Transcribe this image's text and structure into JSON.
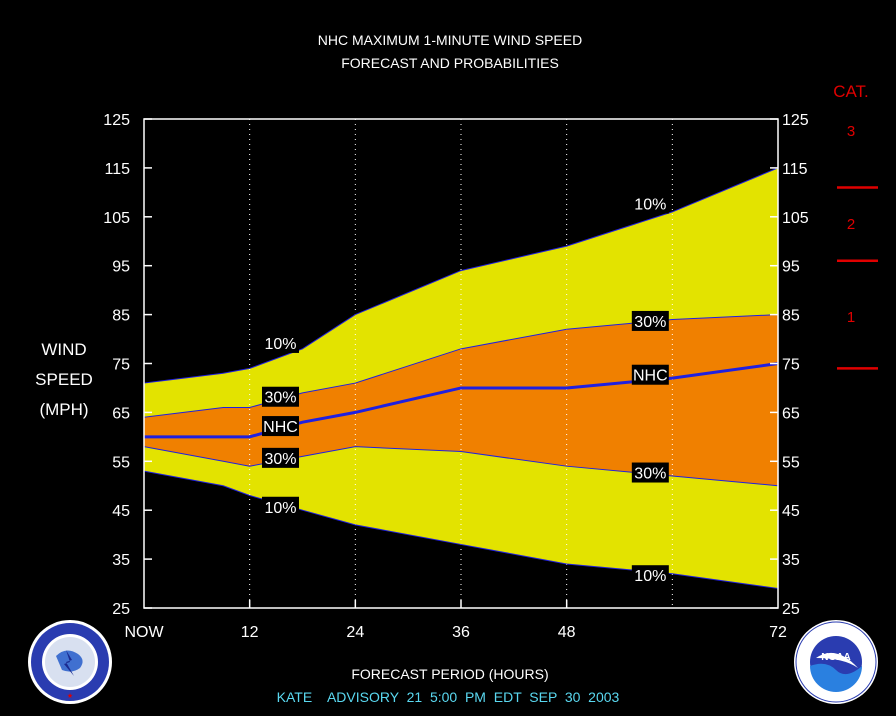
{
  "chart_data": {
    "type": "area",
    "title_line1": "NHC MAXIMUM 1-MINUTE WIND SPEED",
    "title_line2": "FORECAST AND PROBABILITIES",
    "ylabel_lines": [
      "WIND",
      "SPEED",
      "(MPH)"
    ],
    "xlabel": "FORECAST PERIOD (HOURS)",
    "footer": "KATE    ADVISORY  21  5:00  PM  EDT  SEP  30  2003",
    "xlim": [
      0,
      72
    ],
    "ylim": [
      25,
      125
    ],
    "x_ticks": [
      {
        "value": 0,
        "label": "NOW"
      },
      {
        "value": 12,
        "label": "12"
      },
      {
        "value": 24,
        "label": "24"
      },
      {
        "value": 36,
        "label": "36"
      },
      {
        "value": 48,
        "label": "48"
      },
      {
        "value": 72,
        "label": "72"
      }
    ],
    "y_ticks": [
      25,
      35,
      45,
      55,
      65,
      75,
      85,
      95,
      105,
      115,
      125
    ],
    "grid_x": [
      12,
      24,
      36,
      48,
      60
    ],
    "x": [
      0,
      9,
      12,
      18,
      24,
      36,
      48,
      60,
      72
    ],
    "series": [
      {
        "label": "10%",
        "role": "upper",
        "values": [
          71,
          73,
          74,
          78,
          85,
          94,
          99,
          106,
          115
        ]
      },
      {
        "label": "30%",
        "role": "upper",
        "values": [
          64,
          66,
          66,
          69,
          71,
          78,
          82,
          84,
          85
        ]
      },
      {
        "label": "NHC",
        "role": "forecast",
        "values": [
          60,
          60,
          60,
          63,
          65,
          70,
          70,
          72,
          75
        ]
      },
      {
        "label": "30%",
        "role": "lower",
        "values": [
          58,
          55,
          54,
          56,
          58,
          57,
          54,
          52,
          50
        ]
      },
      {
        "label": "10%",
        "role": "lower",
        "values": [
          53,
          50,
          48,
          45,
          42,
          38,
          34,
          32,
          29
        ]
      }
    ],
    "series_labels": [
      {
        "text": "10%",
        "x": 15.5,
        "y": 79
      },
      {
        "text": "30%",
        "x": 15.5,
        "y": 68
      },
      {
        "text": "NHC",
        "x": 15.5,
        "y": 62
      },
      {
        "text": "30%",
        "x": 15.5,
        "y": 55.5
      },
      {
        "text": "10%",
        "x": 15.5,
        "y": 45.5
      },
      {
        "text": "10%",
        "x": 57.5,
        "y": 107.5
      },
      {
        "text": "30%",
        "x": 57.5,
        "y": 83.5
      },
      {
        "text": "NHC",
        "x": 57.5,
        "y": 72.5
      },
      {
        "text": "30%",
        "x": 57.5,
        "y": 52.5
      },
      {
        "text": "10%",
        "x": 57.5,
        "y": 31.5
      }
    ],
    "category_scale": {
      "title": "CAT.",
      "thresholds": [
        74,
        96,
        111
      ],
      "labels": [
        {
          "text": "1",
          "y": 84.5
        },
        {
          "text": "2",
          "y": 103.5
        },
        {
          "text": "3",
          "y": 122.5
        }
      ]
    },
    "colors": {
      "outer_band": "#e3e300",
      "inner_band": "#f08000",
      "forecast_line": "#2020e0",
      "category": "#e00000"
    }
  },
  "logos": {
    "left": "NATIONAL WEATHER SERVICE",
    "right": "NOAA",
    "right_ring": "NATIONAL OCEANIC AND ATMOSPHERIC ADMINISTRATION · U.S. DEPARTMENT OF COMMERCE"
  }
}
